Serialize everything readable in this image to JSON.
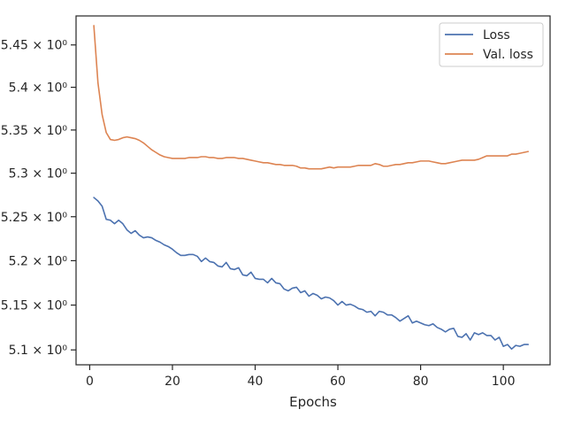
{
  "chart_data": {
    "type": "line",
    "title": "",
    "xlabel": "Epochs",
    "ylabel": "",
    "xlim": [
      -3.3,
      111.3
    ],
    "ylim": [
      5.0835,
      5.4845
    ],
    "yscale": "log",
    "grid": false,
    "legend_position": "top-right",
    "x_ticks": [
      0,
      20,
      40,
      60,
      80,
      100
    ],
    "x_tick_labels": [
      "0",
      "20",
      "40",
      "60",
      "80",
      "100"
    ],
    "y_ticks": [
      5.1,
      5.15,
      5.2,
      5.25,
      5.3,
      5.35,
      5.4,
      5.45
    ],
    "y_tick_labels": [
      "5.1 × 10⁰",
      "5.15 × 10⁰",
      "5.2 × 10⁰",
      "5.25 × 10⁰",
      "5.3 × 10⁰",
      "5.35 × 10⁰",
      "5.4 × 10⁰",
      "5.45 × 10⁰"
    ],
    "x": [
      1,
      2,
      3,
      4,
      5,
      6,
      7,
      8,
      9,
      10,
      11,
      12,
      13,
      14,
      15,
      16,
      17,
      18,
      19,
      20,
      21,
      22,
      23,
      24,
      25,
      26,
      27,
      28,
      29,
      30,
      31,
      32,
      33,
      34,
      35,
      36,
      37,
      38,
      39,
      40,
      41,
      42,
      43,
      44,
      45,
      46,
      47,
      48,
      49,
      50,
      51,
      52,
      53,
      54,
      55,
      56,
      57,
      58,
      59,
      60,
      61,
      62,
      63,
      64,
      65,
      66,
      67,
      68,
      69,
      70,
      71,
      72,
      73,
      74,
      75,
      76,
      77,
      78,
      79,
      80,
      81,
      82,
      83,
      84,
      85,
      86,
      87,
      88,
      89,
      90,
      91,
      92,
      93,
      94,
      95,
      96,
      97,
      98,
      99,
      100,
      101,
      102,
      103,
      104,
      105,
      106
    ],
    "series": [
      {
        "name": "Loss",
        "color": "#4c72b0",
        "values": [
          5.272,
          5.268,
          5.262,
          5.247,
          5.246,
          5.242,
          5.246,
          5.242,
          5.235,
          5.231,
          5.234,
          5.229,
          5.226,
          5.227,
          5.226,
          5.223,
          5.221,
          5.218,
          5.216,
          5.213,
          5.209,
          5.206,
          5.206,
          5.207,
          5.207,
          5.205,
          5.199,
          5.203,
          5.199,
          5.198,
          5.194,
          5.193,
          5.198,
          5.191,
          5.19,
          5.192,
          5.184,
          5.183,
          5.187,
          5.18,
          5.179,
          5.179,
          5.175,
          5.18,
          5.175,
          5.174,
          5.168,
          5.166,
          5.169,
          5.17,
          5.164,
          5.166,
          5.16,
          5.163,
          5.161,
          5.157,
          5.159,
          5.158,
          5.155,
          5.15,
          5.154,
          5.15,
          5.151,
          5.149,
          5.146,
          5.145,
          5.142,
          5.143,
          5.138,
          5.143,
          5.142,
          5.139,
          5.139,
          5.136,
          5.132,
          5.135,
          5.138,
          5.13,
          5.132,
          5.13,
          5.128,
          5.127,
          5.129,
          5.125,
          5.123,
          5.12,
          5.123,
          5.124,
          5.115,
          5.114,
          5.118,
          5.111,
          5.119,
          5.117,
          5.119,
          5.116,
          5.116,
          5.111,
          5.114,
          5.104,
          5.106,
          5.101,
          5.105,
          5.104,
          5.106,
          5.106
        ]
      },
      {
        "name": "Val. loss",
        "color": "#dd8452",
        "values": [
          5.473,
          5.405,
          5.368,
          5.347,
          5.339,
          5.338,
          5.339,
          5.341,
          5.342,
          5.341,
          5.34,
          5.338,
          5.335,
          5.331,
          5.327,
          5.324,
          5.321,
          5.319,
          5.318,
          5.317,
          5.317,
          5.317,
          5.317,
          5.318,
          5.318,
          5.318,
          5.319,
          5.319,
          5.318,
          5.318,
          5.317,
          5.317,
          5.318,
          5.318,
          5.318,
          5.317,
          5.317,
          5.316,
          5.315,
          5.314,
          5.313,
          5.312,
          5.312,
          5.311,
          5.31,
          5.31,
          5.309,
          5.309,
          5.309,
          5.308,
          5.306,
          5.306,
          5.305,
          5.305,
          5.305,
          5.305,
          5.306,
          5.307,
          5.306,
          5.307,
          5.307,
          5.307,
          5.307,
          5.308,
          5.309,
          5.309,
          5.309,
          5.309,
          5.311,
          5.31,
          5.308,
          5.308,
          5.309,
          5.31,
          5.31,
          5.311,
          5.312,
          5.312,
          5.313,
          5.314,
          5.314,
          5.314,
          5.313,
          5.312,
          5.311,
          5.311,
          5.312,
          5.313,
          5.314,
          5.315,
          5.315,
          5.315,
          5.315,
          5.316,
          5.318,
          5.32,
          5.32,
          5.32,
          5.32,
          5.32,
          5.32,
          5.322,
          5.322,
          5.323,
          5.324,
          5.325
        ]
      }
    ]
  }
}
